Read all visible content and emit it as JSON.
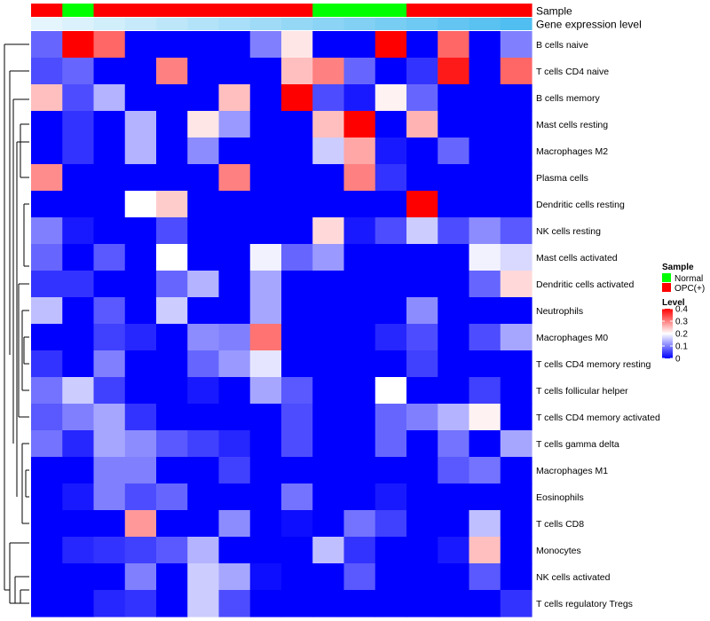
{
  "chart_data": {
    "type": "heatmap",
    "title": "",
    "annotation_tracks": [
      {
        "name": "Sample",
        "colors": [
          "#ff0000",
          "#00ff00",
          "#ff0000",
          "#ff0000",
          "#ff0000",
          "#ff0000",
          "#ff0000",
          "#ff0000",
          "#ff0000",
          "#00ff00",
          "#00ff00",
          "#00ff00",
          "#ff0000",
          "#ff0000",
          "#ff0000",
          "#ff0000"
        ]
      },
      {
        "name": "Gene expression level",
        "values": [
          0.02,
          0.04,
          0.06,
          0.08,
          0.1,
          0.12,
          0.14,
          0.16,
          0.18,
          0.2,
          0.22,
          0.24,
          0.26,
          0.28,
          0.3,
          0.32
        ]
      }
    ],
    "rows": [
      "B cells naive",
      "T cells CD4 naive",
      "B cells memory",
      "Mast cells resting",
      "Macrophages M2",
      "Plasma cells",
      "Dendritic cells resting",
      "NK cells resting",
      "Mast cells activated",
      "Dendritic cells activated",
      "Neutrophils",
      "Macrophages M0",
      "T cells CD4 memory resting",
      "T cells follicular helper",
      "T cells CD4 memory activated",
      "T cells gamma delta",
      "Macrophages M1",
      "Eosinophils",
      "T cells CD8",
      "Monocytes",
      "NK cells activated",
      "T cells regulatory  Tregs"
    ],
    "values": [
      [
        0.08,
        0.4,
        0.32,
        0,
        0,
        0,
        0,
        0.1,
        0.22,
        0,
        0,
        0.4,
        0,
        0.32,
        0,
        0.1
      ],
      [
        0.06,
        0.08,
        0,
        0,
        0.3,
        0,
        0,
        0,
        0.25,
        0.3,
        0.08,
        0,
        0.04,
        0.38,
        0,
        0.32
      ],
      [
        0.25,
        0.06,
        0.14,
        0,
        0,
        0,
        0.25,
        0,
        0.4,
        0.06,
        0.02,
        0.21,
        0.08,
        0,
        0,
        0
      ],
      [
        0,
        0.04,
        0,
        0.14,
        0,
        0.22,
        0.12,
        0,
        0,
        0.25,
        0.4,
        0,
        0.26,
        0,
        0,
        0
      ],
      [
        0,
        0.04,
        0,
        0.14,
        0,
        0.11,
        0,
        0,
        0,
        0.16,
        0.27,
        0.02,
        0,
        0.08,
        0,
        0
      ],
      [
        0.29,
        0,
        0,
        0,
        0,
        0,
        0.3,
        0,
        0,
        0,
        0.3,
        0.04,
        0,
        0,
        0,
        0
      ],
      [
        0,
        0,
        0,
        0.2,
        0.24,
        0,
        0,
        0,
        0,
        0,
        0,
        0,
        0.4,
        0,
        0,
        0
      ],
      [
        0.1,
        0.02,
        0,
        0,
        0.06,
        0,
        0,
        0,
        0,
        0.23,
        0.02,
        0.06,
        0.16,
        0.06,
        0.11,
        0.07
      ],
      [
        0.08,
        0,
        0.07,
        0,
        0.2,
        0,
        0,
        0.19,
        0.08,
        0.12,
        0,
        0,
        0,
        0,
        0.19,
        0.17
      ],
      [
        0.04,
        0.04,
        0,
        0,
        0.08,
        0.14,
        0,
        0.13,
        0,
        0,
        0,
        0,
        0,
        0,
        0.08,
        0.23
      ],
      [
        0.15,
        0,
        0.07,
        0,
        0.16,
        0,
        0,
        0.13,
        0,
        0,
        0,
        0,
        0.11,
        0,
        0,
        0
      ],
      [
        0,
        0,
        0.05,
        0.03,
        0,
        0.11,
        0.1,
        0.31,
        0,
        0,
        0,
        0.03,
        0.06,
        0,
        0.06,
        0.13
      ],
      [
        0.04,
        0,
        0.1,
        0,
        0,
        0.08,
        0.12,
        0.18,
        0,
        0,
        0,
        0,
        0.05,
        0,
        0,
        0
      ],
      [
        0.09,
        0.16,
        0.05,
        0,
        0,
        0.02,
        0,
        0.13,
        0.07,
        0,
        0,
        0.2,
        0,
        0,
        0.05,
        0
      ],
      [
        0.07,
        0.1,
        0.13,
        0.04,
        0,
        0,
        0,
        0,
        0.06,
        0,
        0,
        0.08,
        0.1,
        0.14,
        0.21,
        0
      ],
      [
        0.09,
        0.03,
        0.13,
        0.11,
        0.07,
        0.05,
        0.03,
        0,
        0.06,
        0,
        0,
        0.08,
        0,
        0.09,
        0,
        0.13
      ],
      [
        0,
        0,
        0.1,
        0.1,
        0,
        0,
        0.05,
        0,
        0,
        0,
        0,
        0,
        0,
        0.07,
        0.09,
        0
      ],
      [
        0,
        0.02,
        0.1,
        0.06,
        0.08,
        0,
        0,
        0,
        0.09,
        0,
        0,
        0.02,
        0,
        0,
        0,
        0
      ],
      [
        0,
        0,
        0,
        0.28,
        0,
        0,
        0.11,
        0,
        0.01,
        0,
        0.09,
        0.05,
        0,
        0,
        0.15,
        0
      ],
      [
        0,
        0.03,
        0.04,
        0.05,
        0.07,
        0.14,
        0,
        0,
        0,
        0.15,
        0.04,
        0,
        0,
        0.02,
        0.25,
        0
      ],
      [
        0,
        0,
        0,
        0.1,
        0,
        0.16,
        0.13,
        0.01,
        0,
        0,
        0.07,
        0,
        0,
        0,
        0.07,
        0
      ],
      [
        0,
        0,
        0.03,
        0.04,
        0,
        0.16,
        0.06,
        0,
        0,
        0,
        0,
        0,
        0,
        0,
        0,
        0.04
      ]
    ],
    "legend": {
      "sample_title": "Sample",
      "sample_items": [
        {
          "label": "Normal",
          "color": "#00ff00"
        },
        {
          "label": "OPC(+)",
          "color": "#ff0000"
        }
      ],
      "level_title": "Level",
      "level_ticks": [
        "0.4",
        "0.3",
        "0.2",
        "0.1",
        "0"
      ],
      "level_range": [
        0,
        0.4
      ],
      "colors": {
        "low": "#0000ff",
        "mid": "#ffffff",
        "high": "#ff0000"
      }
    }
  }
}
